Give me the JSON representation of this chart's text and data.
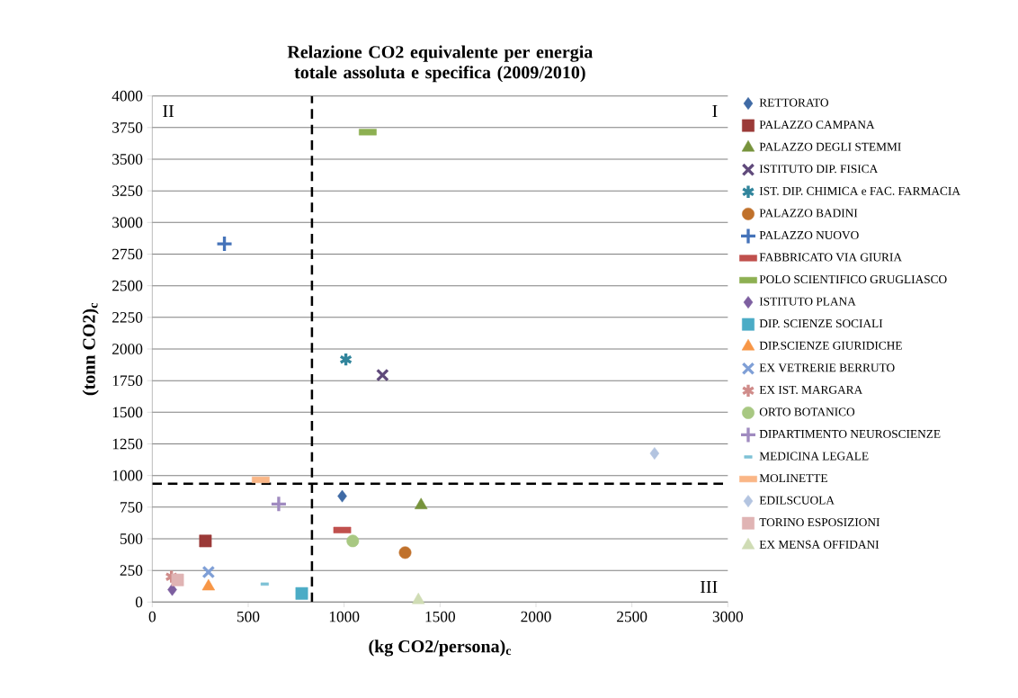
{
  "chart_data": {
    "type": "scatter",
    "title": "Relazione CO2 equivalente per energia totale assoluta e specifica (2009/2010)",
    "xlabel": "(kg CO2/persona)$_{c}$",
    "ylabel": "(tonn CO2)$_{c}$",
    "xlim": [
      0,
      3000
    ],
    "xticks": [
      0,
      500,
      1000,
      1500,
      2000,
      2500,
      3000
    ],
    "ylim": [
      0,
      4000
    ],
    "yticks": [
      0,
      250,
      500,
      750,
      1000,
      1250,
      1500,
      1750,
      2000,
      2250,
      2500,
      2750,
      3000,
      3250,
      3500,
      3750,
      4000
    ],
    "grid": "y",
    "legend": "right",
    "annotations": [
      "II",
      "I",
      "III"
    ],
    "ref_lines": [
      {
        "axis": "x",
        "value": 832,
        "color": "#000000",
        "line_style": "dashed"
      },
      {
        "axis": "y",
        "value": 935,
        "color": "#000000",
        "line_style": "dashed"
      }
    ],
    "series": [
      {
        "name": "RETTORATO",
        "color": "#3f6aa5",
        "marker": "diamond",
        "x": [
          990
        ],
        "values": [
          837
        ]
      },
      {
        "name": "PALAZZO CAMPANA",
        "color": "#9b3a38",
        "marker": "square",
        "x": [
          277
        ],
        "values": [
          483
        ]
      },
      {
        "name": "PALAZZO DEGLI STEMMI",
        "color": "#77933c",
        "marker": "triangle",
        "x": [
          1401
        ],
        "values": [
          765
        ]
      },
      {
        "name": "ISTITUTO DIP. FISICA",
        "color": "#604a7b",
        "marker": "cross",
        "x": [
          1200
        ],
        "values": [
          1794
        ]
      },
      {
        "name": "IST. DIP. CHIMICA e FAC. FARMACIA",
        "color": "#31859c",
        "marker": "cross",
        "x": [
          1009
        ],
        "values": [
          1917
        ]
      },
      {
        "name": "PALAZZO BADINI",
        "color": "#c0712b",
        "marker": "circle",
        "x": [
          1318
        ],
        "values": [
          391
        ]
      },
      {
        "name": "PALAZZO NUOVO",
        "color": "#4573b9",
        "marker": "plus",
        "x": [
          376
        ],
        "values": [
          2831
        ]
      },
      {
        "name": "FABBRICATO VIA GIURIA",
        "color": "#c0504d",
        "marker": "square",
        "x": [
          990
        ],
        "values": [
          569
        ]
      },
      {
        "name": "POLO SCIENTIFICO GRUGLIASCO",
        "color": "#8db052",
        "marker": "square",
        "x": [
          1123
        ],
        "values": [
          3714
        ]
      },
      {
        "name": "ISTITUTO PLANA",
        "color": "#7d5fa0",
        "marker": "diamond",
        "x": [
          104
        ],
        "values": [
          98
        ]
      },
      {
        "name": "DIP. SCIENZE SOCIALI",
        "color": "#4bacc6",
        "marker": "square",
        "x": [
          779
        ],
        "values": [
          68
        ]
      },
      {
        "name": "DIP.SCIENZE GIURIDICHE",
        "color": "#f79646",
        "marker": "triangle",
        "x": [
          293
        ],
        "values": [
          123
        ]
      },
      {
        "name": "EX VETRERIE BERRUTO",
        "color": "#7f9fd6",
        "marker": "cross",
        "x": [
          293
        ],
        "values": [
          237
        ]
      },
      {
        "name": "EX IST. MARGARA",
        "color": "#d08c8a",
        "marker": "cross",
        "x": [
          100
        ],
        "values": [
          200
        ]
      },
      {
        "name": "ORTO BOTANICO",
        "color": "#a8c882",
        "marker": "circle",
        "x": [
          1045
        ],
        "values": [
          483
        ]
      },
      {
        "name": "DIPARTIMENTO NEUROSCIENZE",
        "color": "#a08bc0",
        "marker": "plus",
        "x": [
          659
        ],
        "values": [
          775
        ]
      },
      {
        "name": "MEDICINA LEGALE",
        "color": "#7ec2d6",
        "marker": "square",
        "x": [
          586
        ],
        "values": [
          142
        ]
      },
      {
        "name": "MOLINETTE",
        "color": "#fab686",
        "marker": "square",
        "x": [
          565
        ],
        "values": [
          966
        ]
      },
      {
        "name": "EDILSCUOLA",
        "color": "#b3c4e0",
        "marker": "diamond",
        "x": [
          2618
        ],
        "values": [
          1175
        ]
      },
      {
        "name": "TORINO ESPOSIZIONI",
        "color": "#e0b4b4",
        "marker": "square",
        "x": [
          132
        ],
        "values": [
          175
        ]
      },
      {
        "name": "EX MENSA OFFIDANI",
        "color": "#cfdcb4",
        "marker": "triangle",
        "x": [
          1387
        ],
        "values": [
          15
        ]
      }
    ]
  }
}
